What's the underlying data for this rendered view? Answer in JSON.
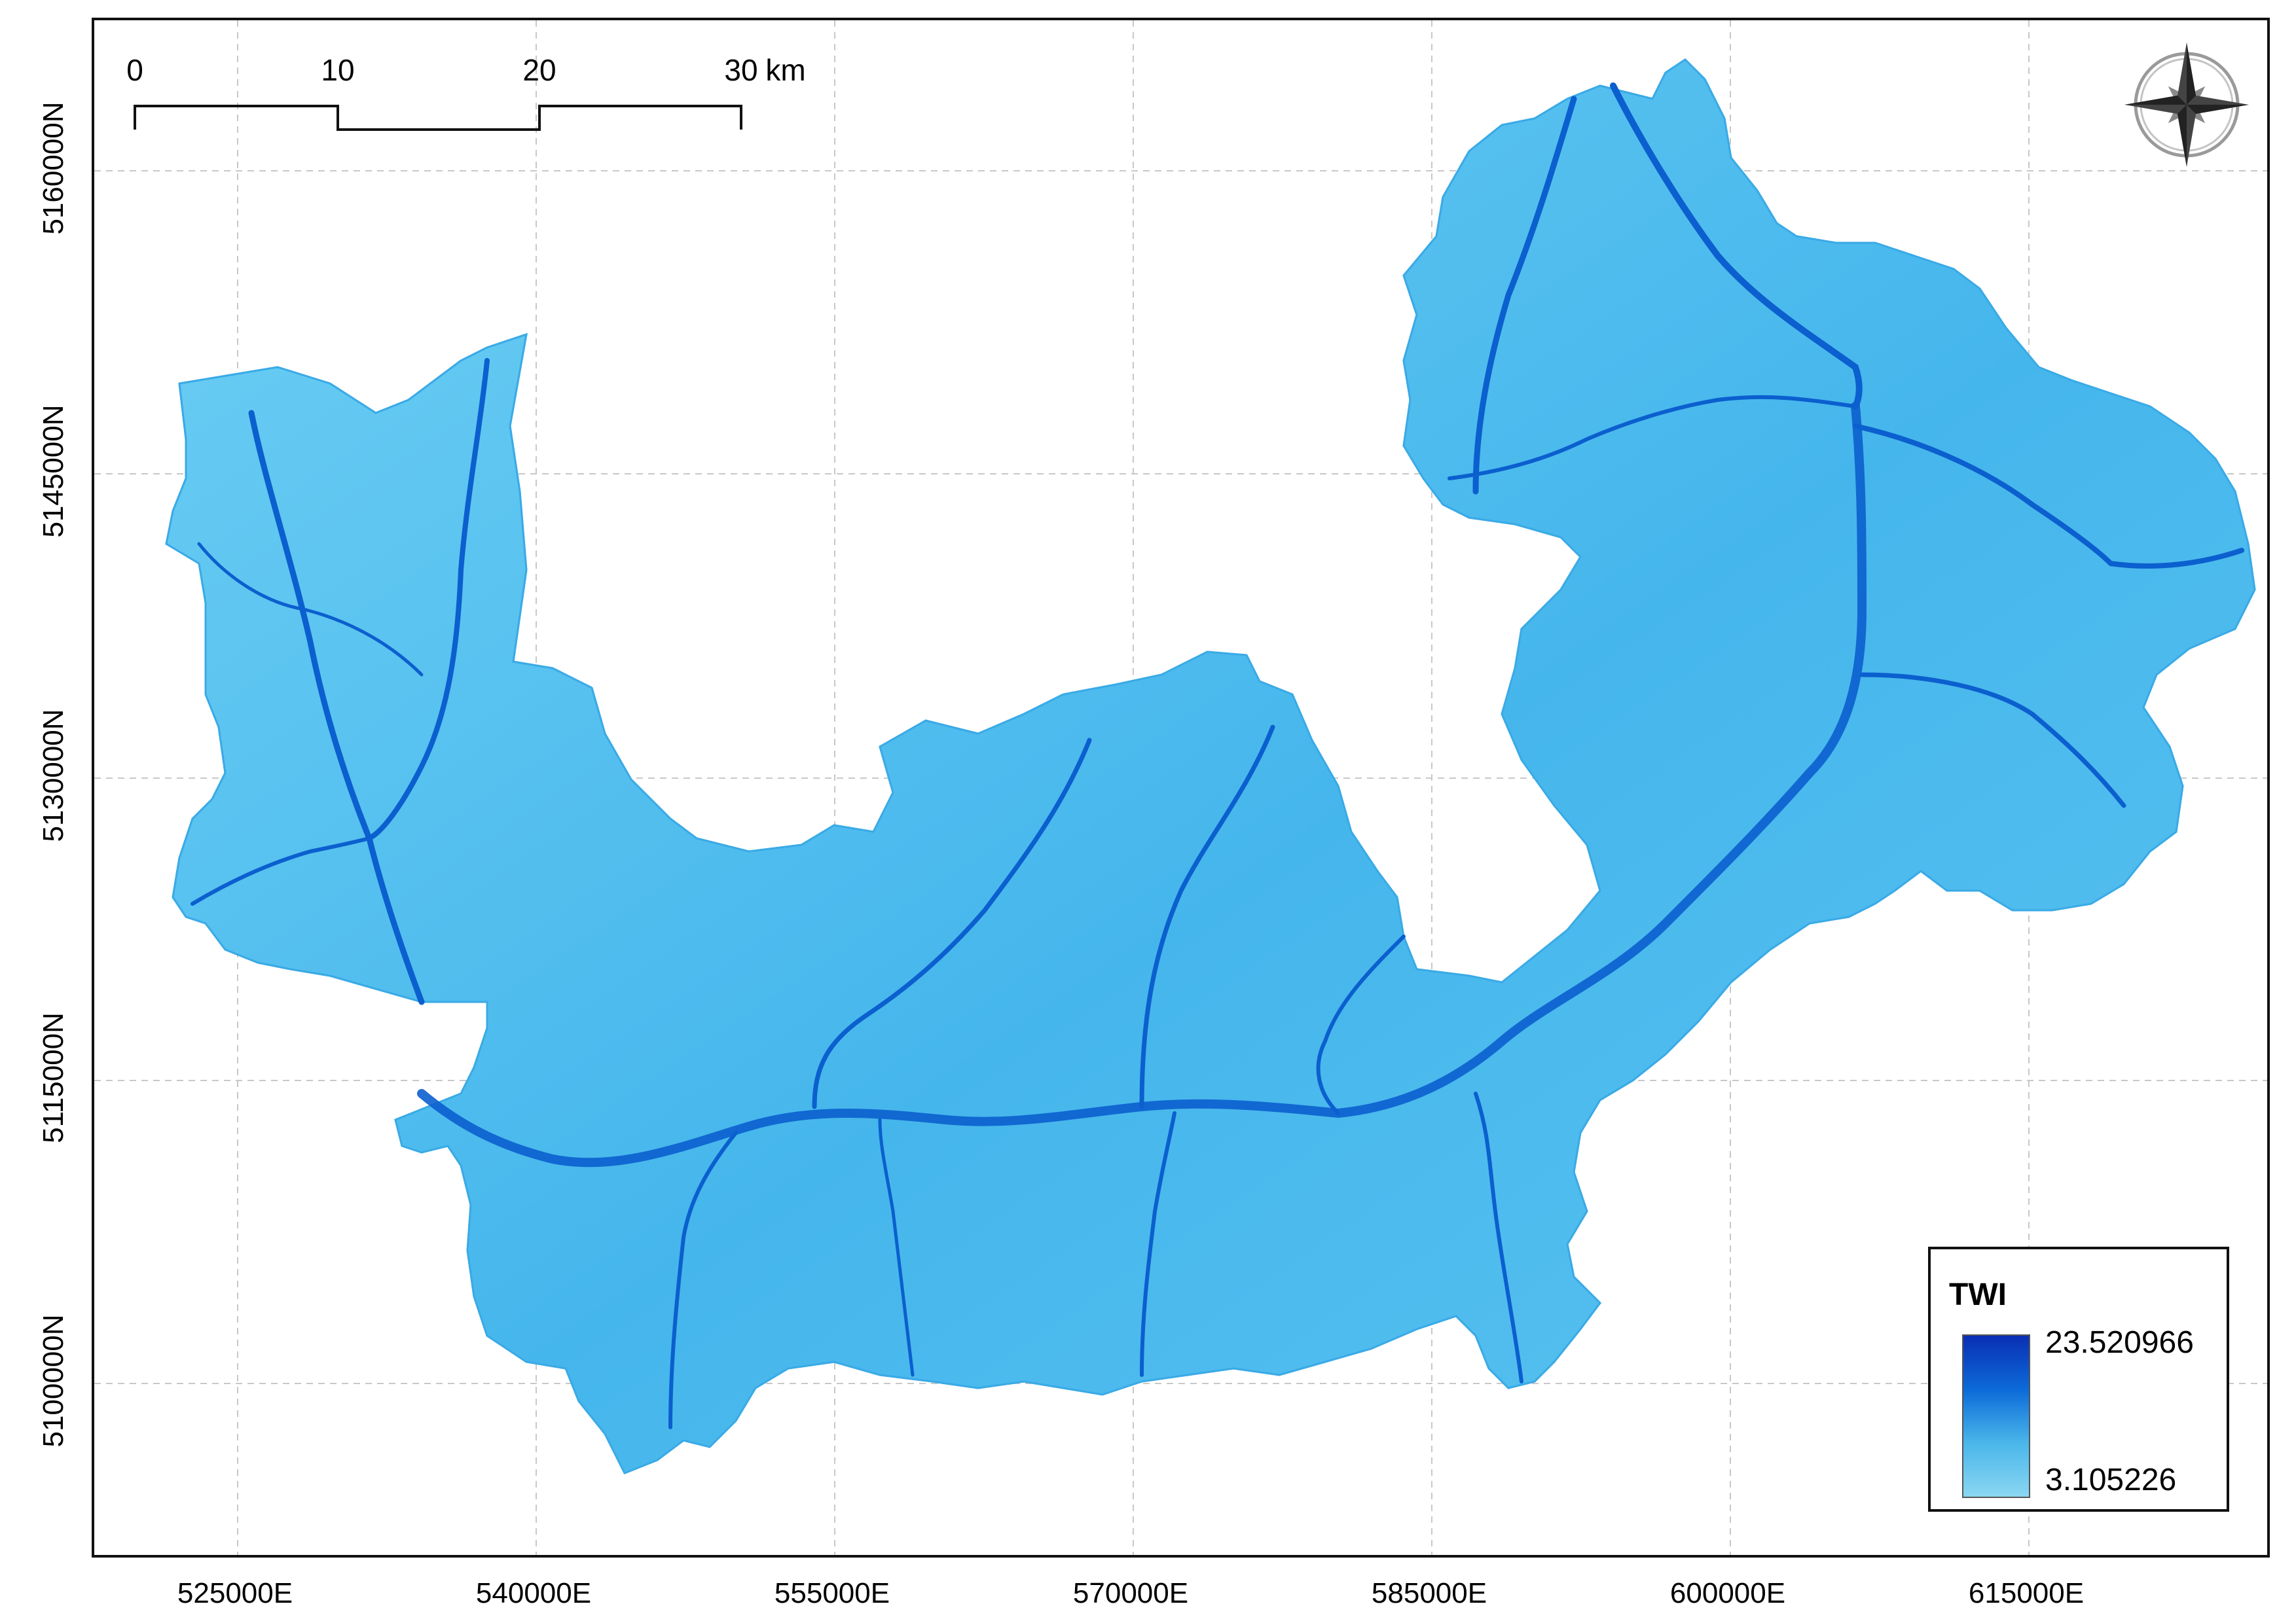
{
  "map": {
    "layer_color_light": "#6fd0f4",
    "layer_color_mid": "#38ace8",
    "layer_color_dark": "#0b5fce",
    "grid_color": "#c8c8c8"
  },
  "axes": {
    "x_labels": [
      "525000E",
      "540000E",
      "555000E",
      "570000E",
      "585000E",
      "600000E",
      "615000E"
    ],
    "y_labels": [
      "5160000N",
      "5145000N",
      "5130000N",
      "5115000N",
      "5100000N"
    ]
  },
  "scalebar": {
    "labels": [
      "0",
      "10",
      "20",
      "30"
    ],
    "unit": "km"
  },
  "north_arrow": {
    "icon": "compass-rose-icon"
  },
  "legend": {
    "title": "TWI",
    "max_value": "23.520966",
    "min_value": "3.105226",
    "ramp_colors": [
      "#0a2fb4",
      "#0c6ad8",
      "#4ab6ea",
      "#8ad7f2"
    ]
  }
}
